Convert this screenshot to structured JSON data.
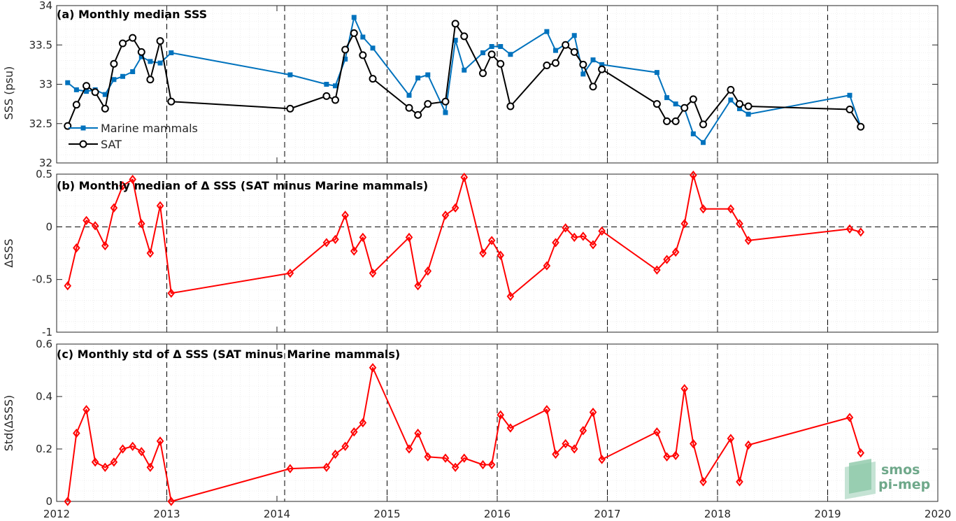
{
  "chart_data": [
    {
      "type": "line",
      "title": "(a) Monthly median SSS",
      "ylabel": "SSS (psu)",
      "xlim": [
        2012,
        2020
      ],
      "ylim": [
        32,
        34
      ],
      "yticks": [
        32,
        32.5,
        33,
        33.5,
        34
      ],
      "ytick_labels": [
        "32",
        "32.5",
        "33",
        "33.5",
        "34"
      ],
      "legend": "bottom-left",
      "series": [
        {
          "name": "Marine mammals",
          "color": "#0072bd",
          "marker": "square",
          "x": [
            2012.1,
            2012.18,
            2012.27,
            2012.35,
            2012.44,
            2012.52,
            2012.6,
            2012.69,
            2012.77,
            2012.85,
            2012.94,
            2013.04,
            2014.12,
            2014.45,
            2014.53,
            2014.62,
            2014.7,
            2014.78,
            2014.87,
            2015.2,
            2015.28,
            2015.37,
            2015.53,
            2015.62,
            2015.7,
            2015.87,
            2015.95,
            2016.03,
            2016.12,
            2016.45,
            2016.53,
            2016.62,
            2016.7,
            2016.78,
            2016.87,
            2016.95,
            2017.45,
            2017.54,
            2017.62,
            2017.7,
            2017.78,
            2017.87,
            2018.12,
            2018.2,
            2018.28,
            2019.2,
            2019.3
          ],
          "y": [
            33.02,
            32.93,
            32.91,
            32.93,
            32.87,
            33.06,
            33.1,
            33.16,
            33.35,
            33.29,
            33.27,
            33.4,
            33.12,
            33.0,
            32.98,
            33.32,
            33.85,
            33.6,
            33.46,
            32.86,
            33.08,
            33.12,
            32.64,
            33.56,
            33.18,
            33.4,
            33.48,
            33.48,
            33.38,
            33.67,
            33.43,
            33.51,
            33.62,
            33.13,
            33.31,
            33.25,
            33.15,
            32.83,
            32.75,
            32.69,
            32.37,
            32.26,
            32.8,
            32.69,
            32.62,
            32.86,
            32.46
          ]
        },
        {
          "name": "SAT",
          "color": "#000000",
          "marker": "circle",
          "x": [
            2012.1,
            2012.18,
            2012.27,
            2012.35,
            2012.44,
            2012.52,
            2012.6,
            2012.69,
            2012.77,
            2012.85,
            2012.94,
            2013.04,
            2014.12,
            2014.45,
            2014.53,
            2014.62,
            2014.7,
            2014.78,
            2014.87,
            2015.2,
            2015.28,
            2015.37,
            2015.53,
            2015.62,
            2015.7,
            2015.87,
            2015.95,
            2016.03,
            2016.12,
            2016.45,
            2016.53,
            2016.62,
            2016.7,
            2016.78,
            2016.87,
            2016.95,
            2017.45,
            2017.54,
            2017.62,
            2017.7,
            2017.78,
            2017.87,
            2018.12,
            2018.2,
            2018.28,
            2019.2,
            2019.3
          ],
          "y": [
            32.47,
            32.74,
            32.98,
            32.9,
            32.69,
            33.26,
            33.52,
            33.59,
            33.41,
            33.06,
            33.55,
            32.78,
            32.69,
            32.85,
            32.8,
            33.44,
            33.65,
            33.37,
            33.07,
            32.7,
            32.61,
            32.75,
            32.78,
            33.77,
            33.61,
            33.14,
            33.38,
            33.26,
            32.72,
            33.24,
            33.27,
            33.5,
            33.41,
            33.25,
            32.97,
            33.19,
            32.75,
            32.53,
            32.53,
            32.7,
            32.81,
            32.49,
            32.93,
            32.75,
            32.72,
            32.68,
            32.46
          ]
        }
      ]
    },
    {
      "type": "line",
      "title": "(b) Monthly median of Δ SSS (SAT minus Marine mammals)",
      "ylabel": "ΔSSS",
      "xlim": [
        2012,
        2020
      ],
      "ylim": [
        -1,
        0.5
      ],
      "yticks": [
        -1,
        -0.5,
        0,
        0.5
      ],
      "ytick_labels": [
        "-1",
        "-0.5",
        "0",
        "0.5"
      ],
      "reference_line_y": 0,
      "series": [
        {
          "name": "",
          "color": "#ff0000",
          "marker": "diamond",
          "x": [
            2012.1,
            2012.18,
            2012.27,
            2012.35,
            2012.44,
            2012.52,
            2012.6,
            2012.69,
            2012.77,
            2012.85,
            2012.94,
            2013.04,
            2014.12,
            2014.45,
            2014.53,
            2014.62,
            2014.7,
            2014.78,
            2014.87,
            2015.2,
            2015.28,
            2015.37,
            2015.53,
            2015.62,
            2015.7,
            2015.87,
            2015.95,
            2016.03,
            2016.12,
            2016.45,
            2016.53,
            2016.62,
            2016.7,
            2016.78,
            2016.87,
            2016.95,
            2017.45,
            2017.54,
            2017.62,
            2017.7,
            2017.78,
            2017.87,
            2018.12,
            2018.2,
            2018.28,
            2019.2,
            2019.3
          ],
          "y": [
            -0.56,
            -0.2,
            0.06,
            0.01,
            -0.18,
            0.18,
            0.39,
            0.45,
            0.03,
            -0.25,
            0.2,
            -0.63,
            -0.44,
            -0.15,
            -0.12,
            0.11,
            -0.23,
            -0.1,
            -0.44,
            -0.1,
            -0.56,
            -0.42,
            0.11,
            0.18,
            0.47,
            -0.25,
            -0.13,
            -0.27,
            -0.66,
            -0.37,
            -0.15,
            -0.01,
            -0.1,
            -0.09,
            -0.17,
            -0.04,
            -0.41,
            -0.31,
            -0.24,
            0.03,
            0.49,
            0.17,
            0.17,
            0.03,
            -0.13,
            -0.02,
            -0.05
          ]
        }
      ]
    },
    {
      "type": "line",
      "title": "(c) Monthly std of Δ SSS (SAT minus Marine mammals)",
      "ylabel": "Std(ΔSSS)",
      "xlabel": "",
      "xlim": [
        2012,
        2020
      ],
      "ylim": [
        0,
        0.6
      ],
      "yticks": [
        0,
        0.2,
        0.4,
        0.6
      ],
      "ytick_labels": [
        "0",
        "0.2",
        "0.4",
        "0.6"
      ],
      "xticks": [
        2012,
        2013,
        2014,
        2015,
        2016,
        2017,
        2018,
        2019,
        2020
      ],
      "xtick_labels": [
        "2012",
        "2013",
        "2014",
        "2015",
        "2016",
        "2017",
        "2018",
        "2019",
        "2020"
      ],
      "series": [
        {
          "name": "",
          "color": "#ff0000",
          "marker": "diamond",
          "x": [
            2012.1,
            2012.18,
            2012.27,
            2012.35,
            2012.44,
            2012.52,
            2012.6,
            2012.69,
            2012.77,
            2012.85,
            2012.94,
            2013.04,
            2014.12,
            2014.45,
            2014.53,
            2014.62,
            2014.7,
            2014.78,
            2014.87,
            2015.2,
            2015.28,
            2015.37,
            2015.53,
            2015.62,
            2015.7,
            2015.87,
            2015.95,
            2016.03,
            2016.12,
            2016.45,
            2016.53,
            2016.62,
            2016.7,
            2016.78,
            2016.87,
            2016.95,
            2017.45,
            2017.54,
            2017.62,
            2017.7,
            2017.78,
            2017.87,
            2018.12,
            2018.2,
            2018.28,
            2019.2,
            2019.3
          ],
          "y": [
            0.0,
            0.26,
            0.35,
            0.15,
            0.13,
            0.15,
            0.2,
            0.21,
            0.19,
            0.13,
            0.23,
            0.0,
            0.125,
            0.13,
            0.18,
            0.21,
            0.265,
            0.3,
            0.51,
            0.2,
            0.26,
            0.17,
            0.165,
            0.13,
            0.165,
            0.14,
            0.14,
            0.33,
            0.28,
            0.35,
            0.18,
            0.22,
            0.2,
            0.27,
            0.34,
            0.16,
            0.265,
            0.17,
            0.175,
            0.43,
            0.22,
            0.075,
            0.24,
            0.075,
            0.215,
            0.32,
            0.185
          ]
        }
      ]
    }
  ],
  "shared": {
    "vertical_dashed_lines_x": [
      2013,
      2014.07,
      2015,
      2016,
      2017,
      2018,
      2019
    ]
  },
  "logo": {
    "line1": "smos",
    "line2": "pi-mep"
  }
}
